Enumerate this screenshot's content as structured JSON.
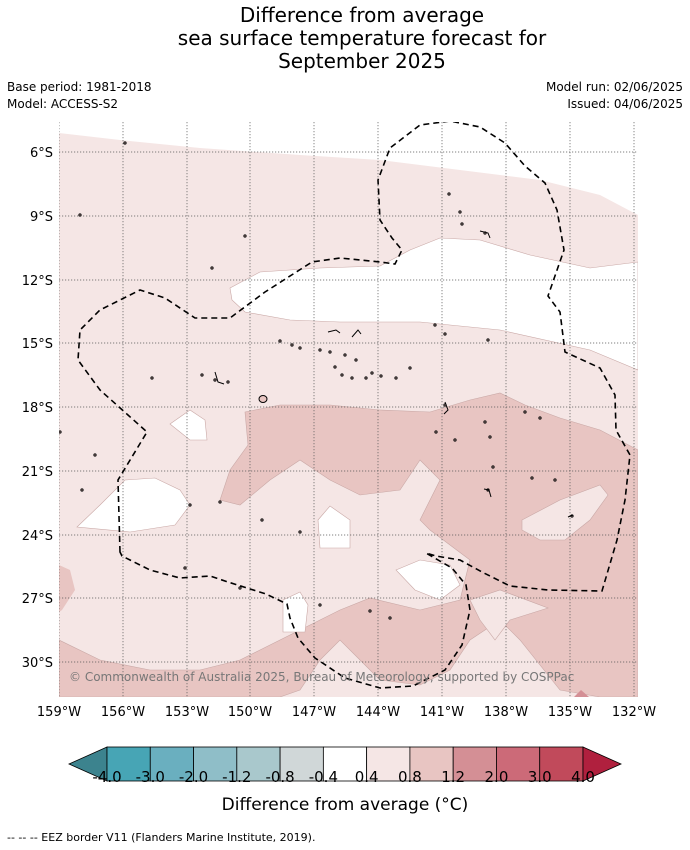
{
  "title": {
    "line1": "Difference from average",
    "line2": "sea surface temperature forecast for",
    "line3": "September 2025"
  },
  "meta": {
    "base_period": "Base period: 1981-2018",
    "model": "Model: ACCESS-S2",
    "model_run": "Model run: 02/06/2025",
    "issued": "Issued: 04/06/2025"
  },
  "map": {
    "lat_labels": [
      "6°S",
      "9°S",
      "12°S",
      "15°S",
      "18°S",
      "21°S",
      "24°S",
      "27°S",
      "30°S"
    ],
    "lon_labels": [
      "159°W",
      "156°W",
      "153°W",
      "150°W",
      "147°W",
      "144°W",
      "141°W",
      "138°W",
      "135°W",
      "132°W"
    ],
    "copyright": "© Commonwealth of Australia 2025, Bureau of Meteorology, supported by COSPPac",
    "colors": {
      "band_0_4_to_0_8": "#f5e6e5",
      "band_0_8_to_1_2": "#e8c5c2",
      "band_1_2_to_2_0": "#d48f95",
      "neutral": "#ffffff"
    }
  },
  "colorbar": {
    "colors": [
      "#3c838e",
      "#47a5b5",
      "#6aafbf",
      "#8fbec8",
      "#a9c8cc",
      "#d0d7d8",
      "#ffffff",
      "#f5e6e5",
      "#e8c5c2",
      "#d48f95",
      "#cc6a78",
      "#c14a5b",
      "#b0203e"
    ],
    "ticks": [
      "-4.0",
      "-3.0",
      "-2.0",
      "-1.2",
      "-0.8",
      "-0.4",
      "0.4",
      "0.8",
      "1.2",
      "2.0",
      "3.0",
      "4.0"
    ],
    "title": "Difference from average (°C)"
  },
  "footnote": "-- -- -- EEZ border V11 (Flanders Marine Institute, 2019)."
}
